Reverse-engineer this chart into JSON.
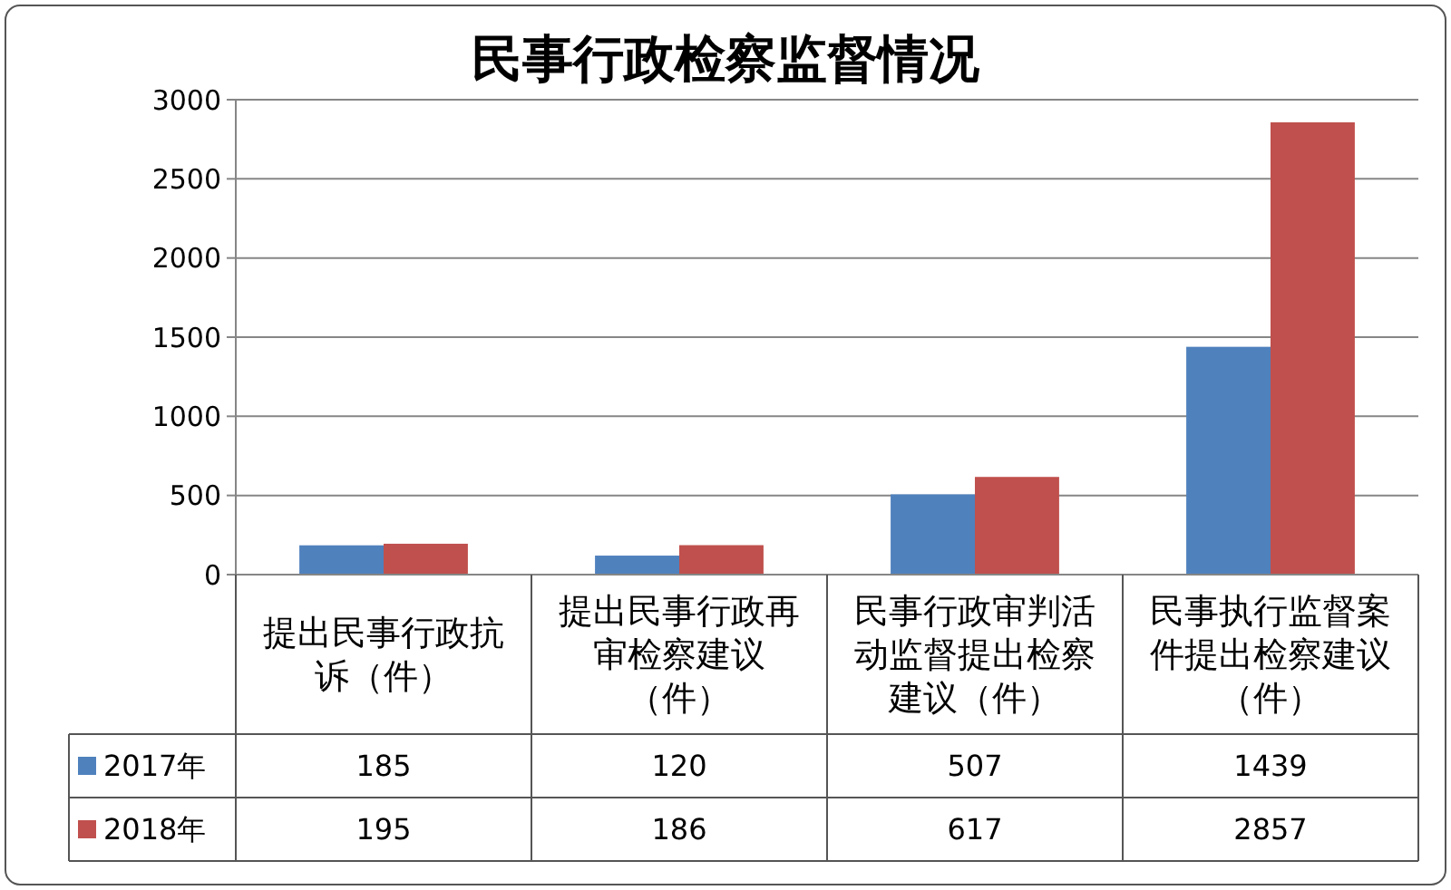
{
  "chart_data": {
    "type": "bar",
    "title": "民事行政检察监督情况",
    "categories": [
      "提出民事行政抗诉（件）",
      "提出民事行政再审检察建议（件）",
      "民事行政审判活动监督提出检察建议（件）",
      "民事执行监督案件提出检察建议（件）"
    ],
    "series": [
      {
        "name": "2017年",
        "color": "#4f81bd",
        "values": [
          185,
          120,
          507,
          1439
        ]
      },
      {
        "name": "2018年",
        "color": "#c0504d",
        "values": [
          195,
          186,
          617,
          2857
        ]
      }
    ],
    "ylim": [
      0,
      3000
    ],
    "yticks": [
      0,
      500,
      1000,
      1500,
      2000,
      2500,
      3000
    ],
    "grid": "y",
    "data_labels": true,
    "legend": "bottom left"
  }
}
